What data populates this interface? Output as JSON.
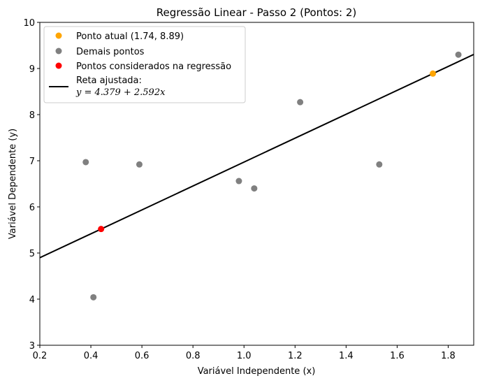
{
  "chart_data": {
    "type": "scatter",
    "title": "Regressão Linear - Passo 2 (Pontos: 2)",
    "xlabel": "Variável Independente (x)",
    "ylabel": "Variável Dependente (y)",
    "xlim": [
      0.2,
      1.9
    ],
    "ylim": [
      3,
      10
    ],
    "xticks": [
      0.2,
      0.4,
      0.6,
      0.8,
      1.0,
      1.2,
      1.4,
      1.6,
      1.8
    ],
    "xtick_labels": [
      "0.2",
      "0.4",
      "0.6",
      "0.8",
      "1.0",
      "1.2",
      "1.4",
      "1.6",
      "1.8"
    ],
    "yticks": [
      3,
      4,
      5,
      6,
      7,
      8,
      9,
      10
    ],
    "ytick_labels": [
      "3",
      "4",
      "5",
      "6",
      "7",
      "8",
      "9",
      "10"
    ],
    "grid": false,
    "legend_position": "top-left",
    "series": [
      {
        "name": "Ponto atual (1.74, 8.89)",
        "color": "#ffa500",
        "points": [
          [
            1.74,
            8.89
          ]
        ]
      },
      {
        "name": "Demais pontos",
        "color": "#808080",
        "points": [
          [
            0.38,
            6.97
          ],
          [
            0.41,
            4.04
          ],
          [
            0.59,
            6.92
          ],
          [
            0.98,
            6.56
          ],
          [
            1.04,
            6.4
          ],
          [
            1.22,
            8.27
          ],
          [
            1.53,
            6.92
          ],
          [
            1.84,
            9.3
          ]
        ]
      },
      {
        "name": "Pontos considerados na regressão",
        "color": "#ff0000",
        "points": [
          [
            0.44,
            5.52
          ]
        ]
      }
    ],
    "fit_line": {
      "name_line1": "Reta ajustada:",
      "name_line2": "y = 4.379 + 2.592x",
      "color": "#000000",
      "intercept": 4.379,
      "slope": 2.592
    }
  }
}
